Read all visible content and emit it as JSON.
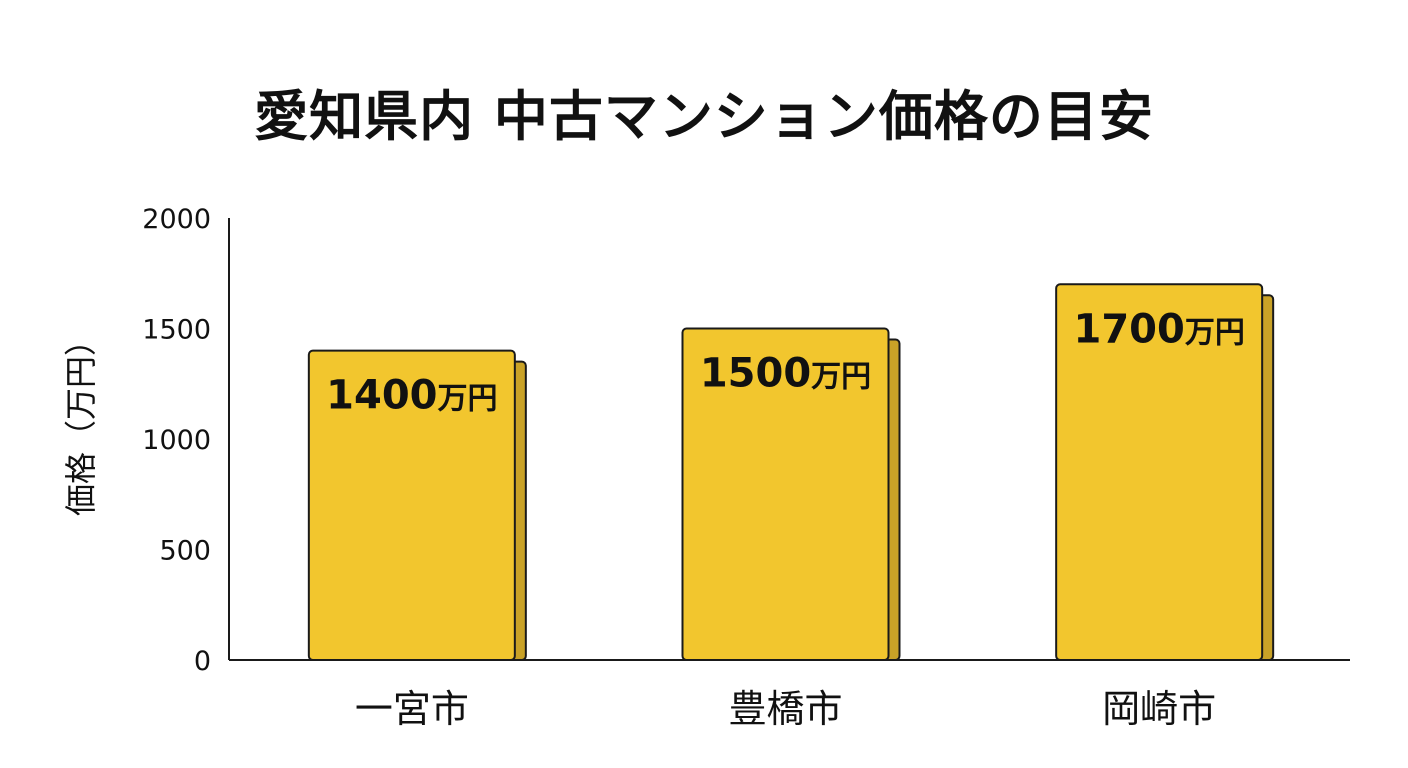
{
  "chart_data": {
    "type": "bar",
    "title": "愛知県内 中古マンション価格の目安",
    "xlabel": "",
    "ylabel": "価格（万円）",
    "categories": [
      "一宮市",
      "豊橋市",
      "岡崎市"
    ],
    "values": [
      1400,
      1500,
      1700
    ],
    "data_labels": [
      "1400万円",
      "1500万円",
      "1700万円"
    ],
    "data_label_unit": "万円",
    "ylim": [
      0,
      2000
    ],
    "yticks": [
      0,
      500,
      1000,
      1500,
      2000
    ],
    "grid": false,
    "legend": "none",
    "colors": {
      "bar_fill": "#F2C62E",
      "bar_shadow": "#C9A227",
      "bar_stroke": "#1a1a1a",
      "axis": "#1a1a1a"
    }
  }
}
